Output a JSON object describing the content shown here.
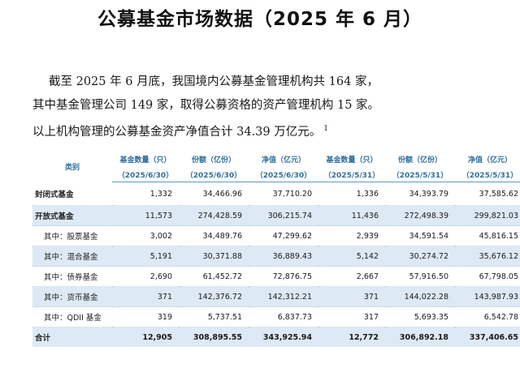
{
  "title": "公募基金市场数据（2025 年 6 月）",
  "paragraph": {
    "line1": "截至 2025 年 6 月底，我国境内公募基金管理机构共 164 家，",
    "line2": "其中基金管理公司 149 家，取得公募资格的资产管理机构 15 家。",
    "line3": "以上机构管理的公募基金资产净值合计 34.39 万亿元。",
    "footnote": "1"
  },
  "table": {
    "category_header": "类别",
    "headers": [
      {
        "label": "基金数量（只）",
        "period": "（2025/6/30）"
      },
      {
        "label": "份额（亿份）",
        "period": "（2025/6/30）"
      },
      {
        "label": "净值（亿元）",
        "period": "（2025/6/30）"
      },
      {
        "label": "基金数量（只）",
        "period": "（2025/5/31）"
      },
      {
        "label": "份额（亿份）",
        "period": "（2025/5/31）"
      },
      {
        "label": "净值（亿元）",
        "period": "（2025/5/31）"
      }
    ],
    "rows": [
      {
        "category": "封闭式基金",
        "values": [
          "1,332",
          "34,466.96",
          "37,710.20",
          "1,336",
          "34,393.79",
          "37,585.62"
        ]
      },
      {
        "category": "开放式基金",
        "values": [
          "11,573",
          "274,428.59",
          "306,215.74",
          "11,436",
          "272,498.39",
          "299,821.03"
        ]
      },
      {
        "category": "其中：股票基金",
        "values": [
          "3,002",
          "34,489.76",
          "47,299.62",
          "2,939",
          "34,591.54",
          "45,816.15"
        ]
      },
      {
        "category": "其中：混合基金",
        "values": [
          "5,191",
          "30,371.88",
          "36,889.43",
          "5,142",
          "30,274.72",
          "35,676.12"
        ]
      },
      {
        "category": "其中：债券基金",
        "values": [
          "2,690",
          "61,452.72",
          "72,876.75",
          "2,667",
          "57,916.50",
          "67,798.05"
        ]
      },
      {
        "category": "其中：货币基金",
        "values": [
          "371",
          "142,376.72",
          "142,312.21",
          "371",
          "144,022.28",
          "143,987.93"
        ]
      },
      {
        "category": "其中：QDII 基金",
        "values": [
          "319",
          "5,737.51",
          "6,837.73",
          "317",
          "5,693.35",
          "6,542.78"
        ]
      },
      {
        "category": "合计",
        "values": [
          "12,905",
          "308,895.55",
          "343,925.94",
          "12,772",
          "306,892.18",
          "337,406.65"
        ]
      }
    ]
  }
}
